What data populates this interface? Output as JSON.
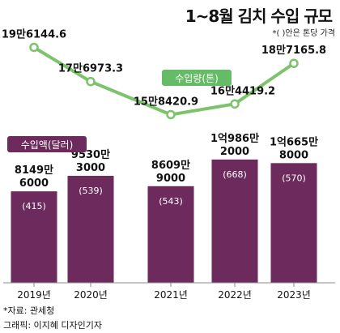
{
  "title": "1~8월 김치 수입 규모",
  "note": "*( )안은 톤당 가격",
  "source": "*자료: 관세청",
  "credit": "그래픽: 이지혜 디자인기자",
  "colors": {
    "bar": "#6d2a5c",
    "line": "#7cc36b",
    "badge_line": "#66bb66",
    "badge_bar": "#6d2a5c",
    "axis": "#888888"
  },
  "chart_data": {
    "type": "bar",
    "categories": [
      "2019년",
      "2020년",
      "2021년",
      "2022년",
      "2023년"
    ],
    "series": [
      {
        "name": "수입액(달러)",
        "type": "bar",
        "unit": "달러",
        "values": [
          81496000,
          95303000,
          86099000,
          109862000,
          106658000
        ],
        "label_top": [
          "8149만",
          "9530만",
          "8609만",
          "1억986만",
          "1억665만"
        ],
        "label_bottom": [
          "6000",
          "3000",
          "9000",
          "2000",
          "8000"
        ],
        "price_per_ton": [
          "(415)",
          "(539)",
          "(543)",
          "(668)",
          "(570)"
        ]
      },
      {
        "name": "수입량(톤)",
        "type": "line",
        "unit": "톤",
        "values": [
          196144.6,
          176973.3,
          158420.9,
          164419.2,
          187165.8
        ],
        "labels": [
          "19만6144.6",
          "17만6973.3",
          "15만8420.9",
          "16만4419.2",
          "18만7165.8"
        ]
      }
    ]
  }
}
